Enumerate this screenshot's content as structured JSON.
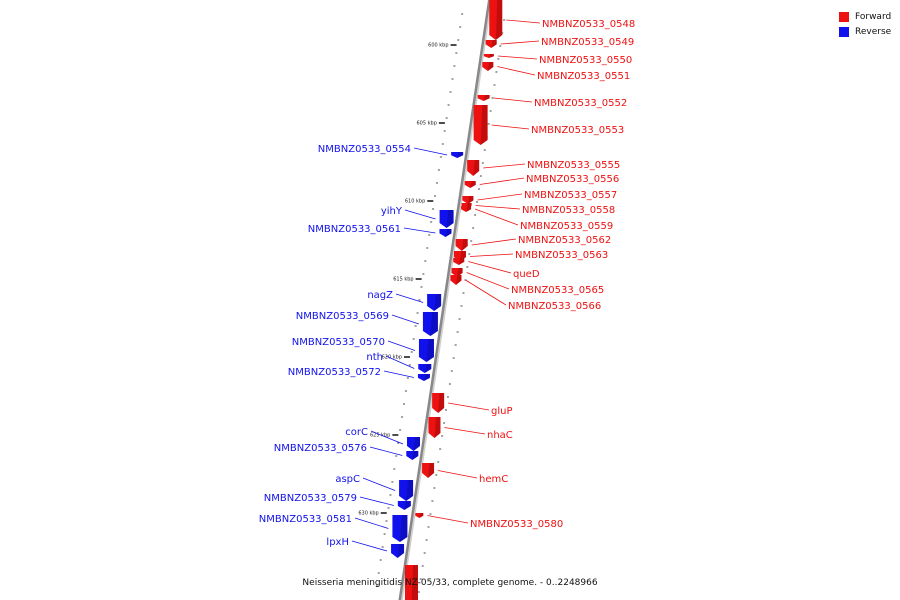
{
  "legend": [
    {
      "label": "Forward",
      "color": "#ee1111"
    },
    {
      "label": "Reverse",
      "color": "#1111ee"
    }
  ],
  "caption": "Neisseria meningitidis NZ-05/33, complete genome. - 0..2248966",
  "colors": {
    "forward": "#ee1111",
    "reverse": "#1111ee",
    "backbone": "#888888"
  },
  "ticks": [
    {
      "label": "600 kbp"
    },
    {
      "label": "605 kbp"
    },
    {
      "label": "610 kbp"
    },
    {
      "label": "615 kbp"
    },
    {
      "label": "620 kbp"
    },
    {
      "label": "625 kbp"
    },
    {
      "label": "630 kbp"
    }
  ],
  "genes": {
    "forward": [
      "NMBNZ0533_0548",
      "NMBNZ0533_0549",
      "NMBNZ0533_0550",
      "NMBNZ0533_0551",
      "NMBNZ0533_0552",
      "NMBNZ0533_0553",
      "NMBNZ0533_0555",
      "NMBNZ0533_0556",
      "NMBNZ0533_0557",
      "NMBNZ0533_0558",
      "NMBNZ0533_0559",
      "NMBNZ0533_0562",
      "NMBNZ0533_0563",
      "queD",
      "NMBNZ0533_0565",
      "NMBNZ0533_0566",
      "gluP",
      "nhaC",
      "hemC",
      "NMBNZ0533_0580"
    ],
    "reverse": [
      "NMBNZ0533_0554",
      "yihY",
      "NMBNZ0533_0561",
      "nagZ",
      "NMBNZ0533_0569",
      "NMBNZ0533_0570",
      "nth",
      "NMBNZ0533_0572",
      "corC",
      "NMBNZ0533_0576",
      "aspC",
      "NMBNZ0533_0579",
      "NMBNZ0533_0581",
      "lpxH"
    ]
  }
}
